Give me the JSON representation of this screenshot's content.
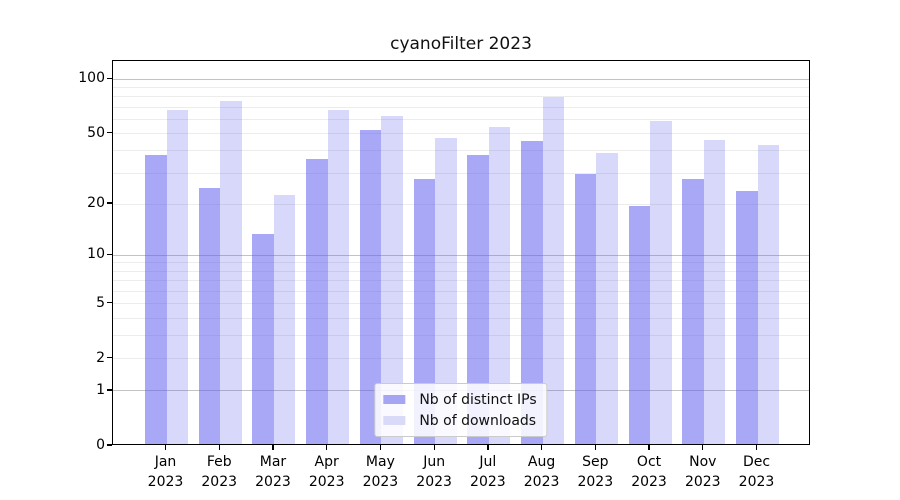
{
  "chart_data": {
    "type": "bar",
    "title": "cyanoFilter 2023",
    "categories": [
      "Jan",
      "Feb",
      "Mar",
      "Apr",
      "May",
      "Jun",
      "Jul",
      "Aug",
      "Sep",
      "Oct",
      "Nov",
      "Dec"
    ],
    "year_label": "2023",
    "series": [
      {
        "name": "Nb of distinct IPs",
        "color": "rgba(90,90,240,0.53)",
        "swatch_color": "#a5a5f3",
        "values": [
          37,
          24,
          13,
          35,
          51,
          27,
          37,
          44,
          29,
          19,
          27,
          23
        ]
      },
      {
        "name": "Nb of downloads",
        "color": "rgba(90,90,240,0.24)",
        "swatch_color": "#d9d9f8",
        "values": [
          66,
          74,
          22,
          66,
          61,
          46,
          53,
          78,
          38,
          57,
          45,
          42
        ]
      }
    ],
    "xlabel": "",
    "ylabel": "",
    "yscale": "log1p",
    "ylim": [
      0,
      126
    ],
    "yticks": [
      0,
      1,
      2,
      5,
      10,
      20,
      50,
      100
    ],
    "grid": {
      "major": [
        1,
        10,
        100
      ],
      "minor": [
        2,
        3,
        4,
        5,
        6,
        7,
        8,
        9,
        20,
        30,
        40,
        50,
        60,
        70,
        80,
        90
      ],
      "major_color": "#c3c3c3",
      "minor_color": "#ececec"
    },
    "legend_position": "lower center"
  }
}
